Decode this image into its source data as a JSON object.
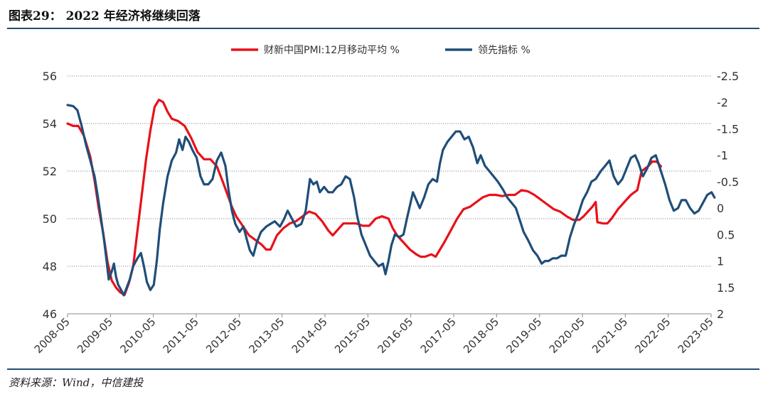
{
  "figure": {
    "title": "图表29：  2022 年经济将继续回落",
    "source": "资料来源：Wind，中信建投"
  },
  "chart_data": {
    "type": "line",
    "x_ticks": [
      "2008-05",
      "2009-05",
      "2010-05",
      "2011-05",
      "2012-05",
      "2013-05",
      "2014-05",
      "2015-05",
      "2016-05",
      "2017-05",
      "2018-05",
      "2019-05",
      "2020-05",
      "2021-05",
      "2022-05",
      "2023-05"
    ],
    "y_left": {
      "ticks": [
        "56",
        "54",
        "52",
        "50",
        "48",
        "46"
      ],
      "range": [
        46,
        56
      ]
    },
    "y_right": {
      "ticks": [
        "-2.5",
        "-2",
        "-1.5",
        "-1",
        "-0.5",
        "0",
        "0.5",
        "1",
        "1.5",
        "2"
      ],
      "range": [
        -2.5,
        2
      ],
      "reversed": true
    },
    "grid": "horizontal-dotted",
    "legend_position": "top-center",
    "series": [
      {
        "name": "财新中国PMI:12月移动平均  %",
        "axis": "left",
        "color": "#e8111a",
        "points": [
          [
            2008.37,
            54.0
          ],
          [
            2008.5,
            53.9
          ],
          [
            2008.62,
            53.9
          ],
          [
            2008.75,
            53.5
          ],
          [
            2008.9,
            52.6
          ],
          [
            2009.0,
            51.6
          ],
          [
            2009.1,
            50.4
          ],
          [
            2009.2,
            49.4
          ],
          [
            2009.3,
            48.2
          ],
          [
            2009.4,
            47.4
          ],
          [
            2009.5,
            47.1
          ],
          [
            2009.6,
            46.9
          ],
          [
            2009.7,
            46.8
          ],
          [
            2009.8,
            47.3
          ],
          [
            2009.9,
            48.0
          ],
          [
            2010.0,
            49.5
          ],
          [
            2010.1,
            51.0
          ],
          [
            2010.2,
            52.5
          ],
          [
            2010.3,
            53.7
          ],
          [
            2010.4,
            54.7
          ],
          [
            2010.5,
            55.0
          ],
          [
            2010.6,
            54.9
          ],
          [
            2010.7,
            54.5
          ],
          [
            2010.8,
            54.2
          ],
          [
            2010.95,
            54.1
          ],
          [
            2011.1,
            53.9
          ],
          [
            2011.25,
            53.4
          ],
          [
            2011.4,
            52.8
          ],
          [
            2011.55,
            52.5
          ],
          [
            2011.7,
            52.5
          ],
          [
            2011.85,
            52.2
          ],
          [
            2012.0,
            51.5
          ],
          [
            2012.1,
            51.0
          ],
          [
            2012.2,
            50.5
          ],
          [
            2012.3,
            50.1
          ],
          [
            2012.45,
            49.7
          ],
          [
            2012.6,
            49.3
          ],
          [
            2012.75,
            49.1
          ],
          [
            2012.9,
            48.9
          ],
          [
            2013.0,
            48.7
          ],
          [
            2013.1,
            48.7
          ],
          [
            2013.25,
            49.3
          ],
          [
            2013.4,
            49.6
          ],
          [
            2013.55,
            49.8
          ],
          [
            2013.7,
            49.9
          ],
          [
            2013.85,
            50.1
          ],
          [
            2014.0,
            50.3
          ],
          [
            2014.15,
            50.2
          ],
          [
            2014.3,
            49.9
          ],
          [
            2014.45,
            49.5
          ],
          [
            2014.55,
            49.3
          ],
          [
            2014.65,
            49.5
          ],
          [
            2014.8,
            49.8
          ],
          [
            2014.95,
            49.8
          ],
          [
            2015.1,
            49.8
          ],
          [
            2015.25,
            49.7
          ],
          [
            2015.4,
            49.7
          ],
          [
            2015.55,
            50.0
          ],
          [
            2015.7,
            50.1
          ],
          [
            2015.85,
            50.0
          ],
          [
            2015.95,
            49.6
          ],
          [
            2016.05,
            49.3
          ],
          [
            2016.2,
            49.0
          ],
          [
            2016.35,
            48.7
          ],
          [
            2016.5,
            48.5
          ],
          [
            2016.6,
            48.4
          ],
          [
            2016.7,
            48.4
          ],
          [
            2016.85,
            48.5
          ],
          [
            2016.95,
            48.4
          ],
          [
            2017.05,
            48.7
          ],
          [
            2017.15,
            49.0
          ],
          [
            2017.3,
            49.5
          ],
          [
            2017.45,
            50.0
          ],
          [
            2017.6,
            50.4
          ],
          [
            2017.75,
            50.5
          ],
          [
            2017.9,
            50.7
          ],
          [
            2018.05,
            50.9
          ],
          [
            2018.2,
            51.0
          ],
          [
            2018.35,
            51.0
          ],
          [
            2018.5,
            50.95
          ],
          [
            2018.65,
            51.0
          ],
          [
            2018.8,
            51.0
          ],
          [
            2018.95,
            51.2
          ],
          [
            2019.1,
            51.15
          ],
          [
            2019.25,
            51.0
          ],
          [
            2019.4,
            50.8
          ],
          [
            2019.55,
            50.6
          ],
          [
            2019.7,
            50.4
          ],
          [
            2019.85,
            50.3
          ],
          [
            2020.0,
            50.1
          ],
          [
            2020.15,
            49.95
          ],
          [
            2020.3,
            49.95
          ],
          [
            2020.4,
            50.1
          ],
          [
            2020.5,
            50.3
          ],
          [
            2020.6,
            50.5
          ],
          [
            2020.68,
            50.7
          ],
          [
            2020.72,
            49.85
          ],
          [
            2020.85,
            49.8
          ],
          [
            2020.95,
            49.8
          ],
          [
            2021.05,
            50.0
          ],
          [
            2021.2,
            50.4
          ],
          [
            2021.35,
            50.7
          ],
          [
            2021.5,
            51.0
          ],
          [
            2021.65,
            51.2
          ],
          [
            2021.75,
            52.0
          ],
          [
            2021.9,
            52.2
          ],
          [
            2022.0,
            52.4
          ],
          [
            2022.1,
            52.4
          ],
          [
            2022.2,
            52.2
          ]
        ]
      },
      {
        "name": "领先指标  %",
        "axis": "right",
        "color": "#1f4e79",
        "points": [
          [
            2008.37,
            -1.95
          ],
          [
            2008.5,
            -1.93
          ],
          [
            2008.6,
            -1.85
          ],
          [
            2008.7,
            -1.55
          ],
          [
            2008.8,
            -1.2
          ],
          [
            2008.9,
            -0.9
          ],
          [
            2009.0,
            -0.6
          ],
          [
            2009.08,
            -0.2
          ],
          [
            2009.15,
            0.2
          ],
          [
            2009.22,
            0.6
          ],
          [
            2009.28,
            1.0
          ],
          [
            2009.33,
            1.35
          ],
          [
            2009.4,
            1.2
          ],
          [
            2009.45,
            1.05
          ],
          [
            2009.5,
            1.3
          ],
          [
            2009.55,
            1.45
          ],
          [
            2009.62,
            1.55
          ],
          [
            2009.68,
            1.65
          ],
          [
            2009.75,
            1.5
          ],
          [
            2009.82,
            1.35
          ],
          [
            2009.9,
            1.1
          ],
          [
            2010.0,
            0.95
          ],
          [
            2010.08,
            0.85
          ],
          [
            2010.15,
            1.1
          ],
          [
            2010.22,
            1.4
          ],
          [
            2010.3,
            1.55
          ],
          [
            2010.38,
            1.45
          ],
          [
            2010.45,
            1.0
          ],
          [
            2010.52,
            0.4
          ],
          [
            2010.6,
            -0.1
          ],
          [
            2010.7,
            -0.6
          ],
          [
            2010.8,
            -0.9
          ],
          [
            2010.9,
            -1.05
          ],
          [
            2010.97,
            -1.3
          ],
          [
            2011.05,
            -1.1
          ],
          [
            2011.12,
            -1.35
          ],
          [
            2011.2,
            -1.25
          ],
          [
            2011.28,
            -1.1
          ],
          [
            2011.38,
            -0.95
          ],
          [
            2011.47,
            -0.6
          ],
          [
            2011.55,
            -0.45
          ],
          [
            2011.65,
            -0.45
          ],
          [
            2011.75,
            -0.55
          ],
          [
            2011.85,
            -0.9
          ],
          [
            2011.95,
            -1.05
          ],
          [
            2012.05,
            -0.8
          ],
          [
            2012.12,
            -0.35
          ],
          [
            2012.2,
            0.05
          ],
          [
            2012.28,
            0.3
          ],
          [
            2012.38,
            0.45
          ],
          [
            2012.47,
            0.35
          ],
          [
            2012.55,
            0.6
          ],
          [
            2012.62,
            0.8
          ],
          [
            2012.7,
            0.9
          ],
          [
            2012.78,
            0.65
          ],
          [
            2012.88,
            0.45
          ],
          [
            2013.0,
            0.35
          ],
          [
            2013.1,
            0.3
          ],
          [
            2013.2,
            0.25
          ],
          [
            2013.32,
            0.35
          ],
          [
            2013.42,
            0.2
          ],
          [
            2013.5,
            0.05
          ],
          [
            2013.6,
            0.2
          ],
          [
            2013.7,
            0.35
          ],
          [
            2013.82,
            0.3
          ],
          [
            2013.92,
            0.05
          ],
          [
            2014.02,
            -0.55
          ],
          [
            2014.1,
            -0.45
          ],
          [
            2014.18,
            -0.5
          ],
          [
            2014.25,
            -0.3
          ],
          [
            2014.35,
            -0.4
          ],
          [
            2014.45,
            -0.3
          ],
          [
            2014.55,
            -0.3
          ],
          [
            2014.65,
            -0.4
          ],
          [
            2014.75,
            -0.45
          ],
          [
            2014.85,
            -0.6
          ],
          [
            2014.95,
            -0.55
          ],
          [
            2015.05,
            -0.2
          ],
          [
            2015.12,
            0.15
          ],
          [
            2015.22,
            0.5
          ],
          [
            2015.32,
            0.7
          ],
          [
            2015.42,
            0.9
          ],
          [
            2015.52,
            1.0
          ],
          [
            2015.62,
            1.1
          ],
          [
            2015.72,
            1.05
          ],
          [
            2015.78,
            1.25
          ],
          [
            2015.85,
            1.0
          ],
          [
            2015.92,
            0.7
          ],
          [
            2016.0,
            0.5
          ],
          [
            2016.1,
            0.55
          ],
          [
            2016.2,
            0.5
          ],
          [
            2016.28,
            0.2
          ],
          [
            2016.35,
            -0.05
          ],
          [
            2016.42,
            -0.3
          ],
          [
            2016.5,
            -0.15
          ],
          [
            2016.58,
            0.0
          ],
          [
            2016.68,
            -0.2
          ],
          [
            2016.78,
            -0.45
          ],
          [
            2016.88,
            -0.55
          ],
          [
            2016.98,
            -0.5
          ],
          [
            2017.05,
            -0.85
          ],
          [
            2017.12,
            -1.1
          ],
          [
            2017.22,
            -1.25
          ],
          [
            2017.32,
            -1.35
          ],
          [
            2017.42,
            -1.45
          ],
          [
            2017.52,
            -1.45
          ],
          [
            2017.62,
            -1.3
          ],
          [
            2017.72,
            -1.35
          ],
          [
            2017.82,
            -1.15
          ],
          [
            2017.92,
            -0.85
          ],
          [
            2018.0,
            -1.0
          ],
          [
            2018.1,
            -0.8
          ],
          [
            2018.2,
            -0.7
          ],
          [
            2018.3,
            -0.6
          ],
          [
            2018.4,
            -0.5
          ],
          [
            2018.52,
            -0.35
          ],
          [
            2018.62,
            -0.2
          ],
          [
            2018.72,
            -0.1
          ],
          [
            2018.82,
            0.0
          ],
          [
            2018.9,
            0.2
          ],
          [
            2019.0,
            0.45
          ],
          [
            2019.1,
            0.6
          ],
          [
            2019.22,
            0.8
          ],
          [
            2019.32,
            0.9
          ],
          [
            2019.42,
            1.05
          ],
          [
            2019.5,
            1.0
          ],
          [
            2019.58,
            1.0
          ],
          [
            2019.68,
            0.95
          ],
          [
            2019.78,
            0.95
          ],
          [
            2019.88,
            0.9
          ],
          [
            2019.98,
            0.9
          ],
          [
            2020.08,
            0.55
          ],
          [
            2020.18,
            0.3
          ],
          [
            2020.28,
            0.1
          ],
          [
            2020.38,
            -0.15
          ],
          [
            2020.48,
            -0.3
          ],
          [
            2020.58,
            -0.5
          ],
          [
            2020.68,
            -0.55
          ],
          [
            2020.8,
            -0.7
          ],
          [
            2020.9,
            -0.8
          ],
          [
            2021.0,
            -0.9
          ],
          [
            2021.1,
            -0.6
          ],
          [
            2021.2,
            -0.45
          ],
          [
            2021.3,
            -0.55
          ],
          [
            2021.4,
            -0.75
          ],
          [
            2021.5,
            -0.95
          ],
          [
            2021.6,
            -1.0
          ],
          [
            2021.68,
            -0.85
          ],
          [
            2021.78,
            -0.6
          ],
          [
            2021.88,
            -0.75
          ],
          [
            2021.98,
            -0.95
          ],
          [
            2022.08,
            -1.0
          ],
          [
            2022.18,
            -0.75
          ],
          [
            2022.3,
            -0.45
          ],
          [
            2022.4,
            -0.15
          ],
          [
            2022.5,
            0.05
          ],
          [
            2022.6,
            0.0
          ],
          [
            2022.68,
            -0.15
          ],
          [
            2022.78,
            -0.15
          ],
          [
            2022.88,
            0.0
          ],
          [
            2022.98,
            0.1
          ],
          [
            2023.08,
            0.05
          ],
          [
            2023.18,
            -0.1
          ],
          [
            2023.28,
            -0.25
          ],
          [
            2023.38,
            -0.3
          ],
          [
            2023.45,
            -0.2
          ]
        ]
      }
    ]
  }
}
